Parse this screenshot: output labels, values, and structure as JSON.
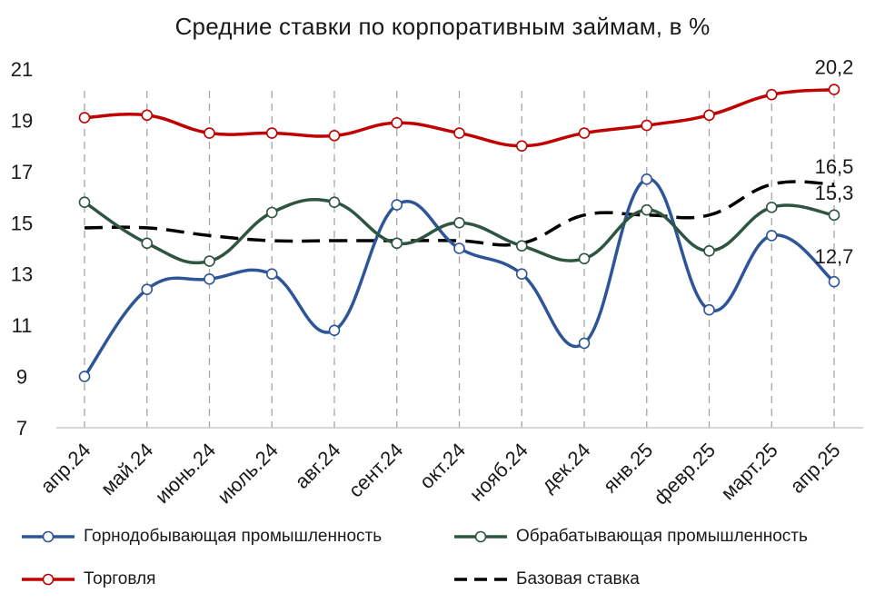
{
  "chart_data": {
    "type": "line",
    "title": "Средние ставки по корпоративным займам, в %",
    "categories": [
      "апр.24",
      "май.24",
      "июнь.24",
      "июль.24",
      "авг.24",
      "сент.24",
      "окт.24",
      "нояб.24",
      "дек.24",
      "янв.25",
      "февр.25",
      "март.25",
      "апр.25"
    ],
    "ylim": [
      7,
      21
    ],
    "yticks": [
      "7",
      "9",
      "11",
      "13",
      "15",
      "17",
      "19",
      "21"
    ],
    "grid": "vertical dashed",
    "legend_position": "bottom",
    "series": [
      {
        "name": "Горнодобывающая промышленность",
        "color": "#2E5597",
        "style": "smooth-markers",
        "values": [
          9.0,
          12.4,
          12.8,
          13.0,
          10.8,
          15.7,
          14.0,
          13.0,
          10.3,
          16.7,
          11.6,
          14.5,
          12.7
        ],
        "last_label": "12,7"
      },
      {
        "name": "Обрабатывающая промышленность",
        "color": "#2E5540",
        "style": "smooth-markers",
        "values": [
          15.8,
          14.2,
          13.5,
          15.4,
          15.8,
          14.2,
          15.0,
          14.1,
          13.6,
          15.5,
          13.9,
          15.6,
          15.3
        ],
        "last_label": "15,3"
      },
      {
        "name": "Торговля",
        "color": "#C00000",
        "style": "smooth-markers",
        "values": [
          19.1,
          19.2,
          18.5,
          18.5,
          18.4,
          18.9,
          18.5,
          18.0,
          18.5,
          18.8,
          19.2,
          20.0,
          20.2
        ],
        "last_label": "20,2"
      },
      {
        "name": "Базовая ставка",
        "color": "#000000",
        "style": "dashed",
        "values": [
          14.8,
          14.8,
          14.5,
          14.3,
          14.3,
          14.3,
          14.3,
          14.2,
          15.3,
          15.3,
          15.3,
          16.5,
          16.5
        ],
        "last_label": "16,5"
      }
    ]
  }
}
